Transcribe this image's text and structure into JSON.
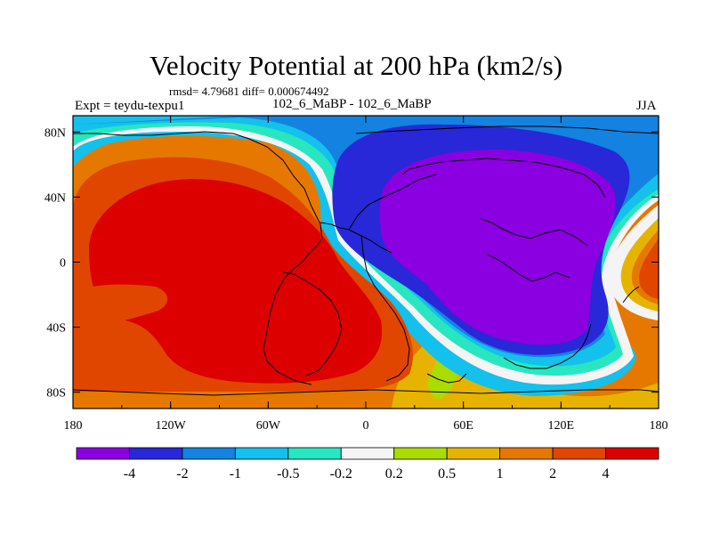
{
  "chart_data": {
    "type": "heatmap",
    "title": "Velocity Potential at 200 hPa (km2/s)",
    "stats_text": "rmsd= 4.79681 diff= 0.000674492",
    "left_label": "Expt = teydu-texpu1",
    "center_label": "102_6_MaBP - 102_6_MaBP",
    "right_label": "JJA",
    "x_ticks": [
      "180",
      "120W",
      "60W",
      "0",
      "60E",
      "120E",
      "180"
    ],
    "y_ticks": [
      "80N",
      "40N",
      "0",
      "40S",
      "80S"
    ],
    "xlim": [
      -180,
      180
    ],
    "ylim": [
      -90,
      90
    ],
    "colorbar": {
      "labels": [
        "-4",
        "-2",
        "-1",
        "-0.5",
        "-0.2",
        "0.2",
        "0.5",
        "1",
        "2",
        "4"
      ],
      "colors": [
        "#8a00e0",
        "#2828d8",
        "#1482e0",
        "#14c0ec",
        "#28e6c0",
        "#f4f4f4",
        "#aadc00",
        "#e6b400",
        "#e67800",
        "#e04600",
        "#dc0000"
      ]
    },
    "features": [
      {
        "name": "Eastern hemisphere low (upper-level divergence)",
        "center_lon": 100,
        "center_lat": 10,
        "class": "< -4"
      },
      {
        "name": "Western hemisphere high (upper-level convergence)",
        "center_lon": -110,
        "center_lat": 0,
        "class": "> 2"
      },
      {
        "name": "Eastern Pacific high lobe",
        "center_lon": 170,
        "center_lat": -10,
        "class": "2 to 4"
      }
    ]
  }
}
